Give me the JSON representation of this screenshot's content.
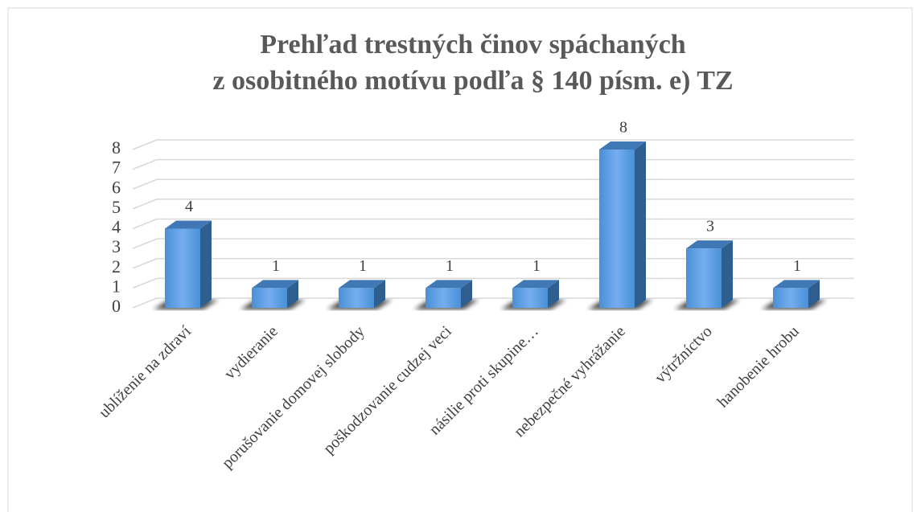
{
  "chart_data": {
    "type": "bar3d",
    "title": [
      "Prehľad trestných činov spáchaných",
      "z osobitného motívu podľa § 140 písm. e) TZ"
    ],
    "categories": [
      "ublíženie na zdraví",
      "vydieranie",
      "porušovanie domovej slobody",
      "poškodzovanie cudzej veci",
      "násilie proti skupine…",
      "nebezpečné vyhrážanie",
      "výtržníctvo",
      "hanobenie hrobu"
    ],
    "values": [
      4,
      1,
      1,
      1,
      1,
      8,
      3,
      1
    ],
    "color": "#5b9bd5",
    "ylim": [
      0,
      8
    ],
    "yticks": [
      0,
      1,
      2,
      3,
      4,
      5,
      6,
      7,
      8
    ],
    "grid": true
  }
}
